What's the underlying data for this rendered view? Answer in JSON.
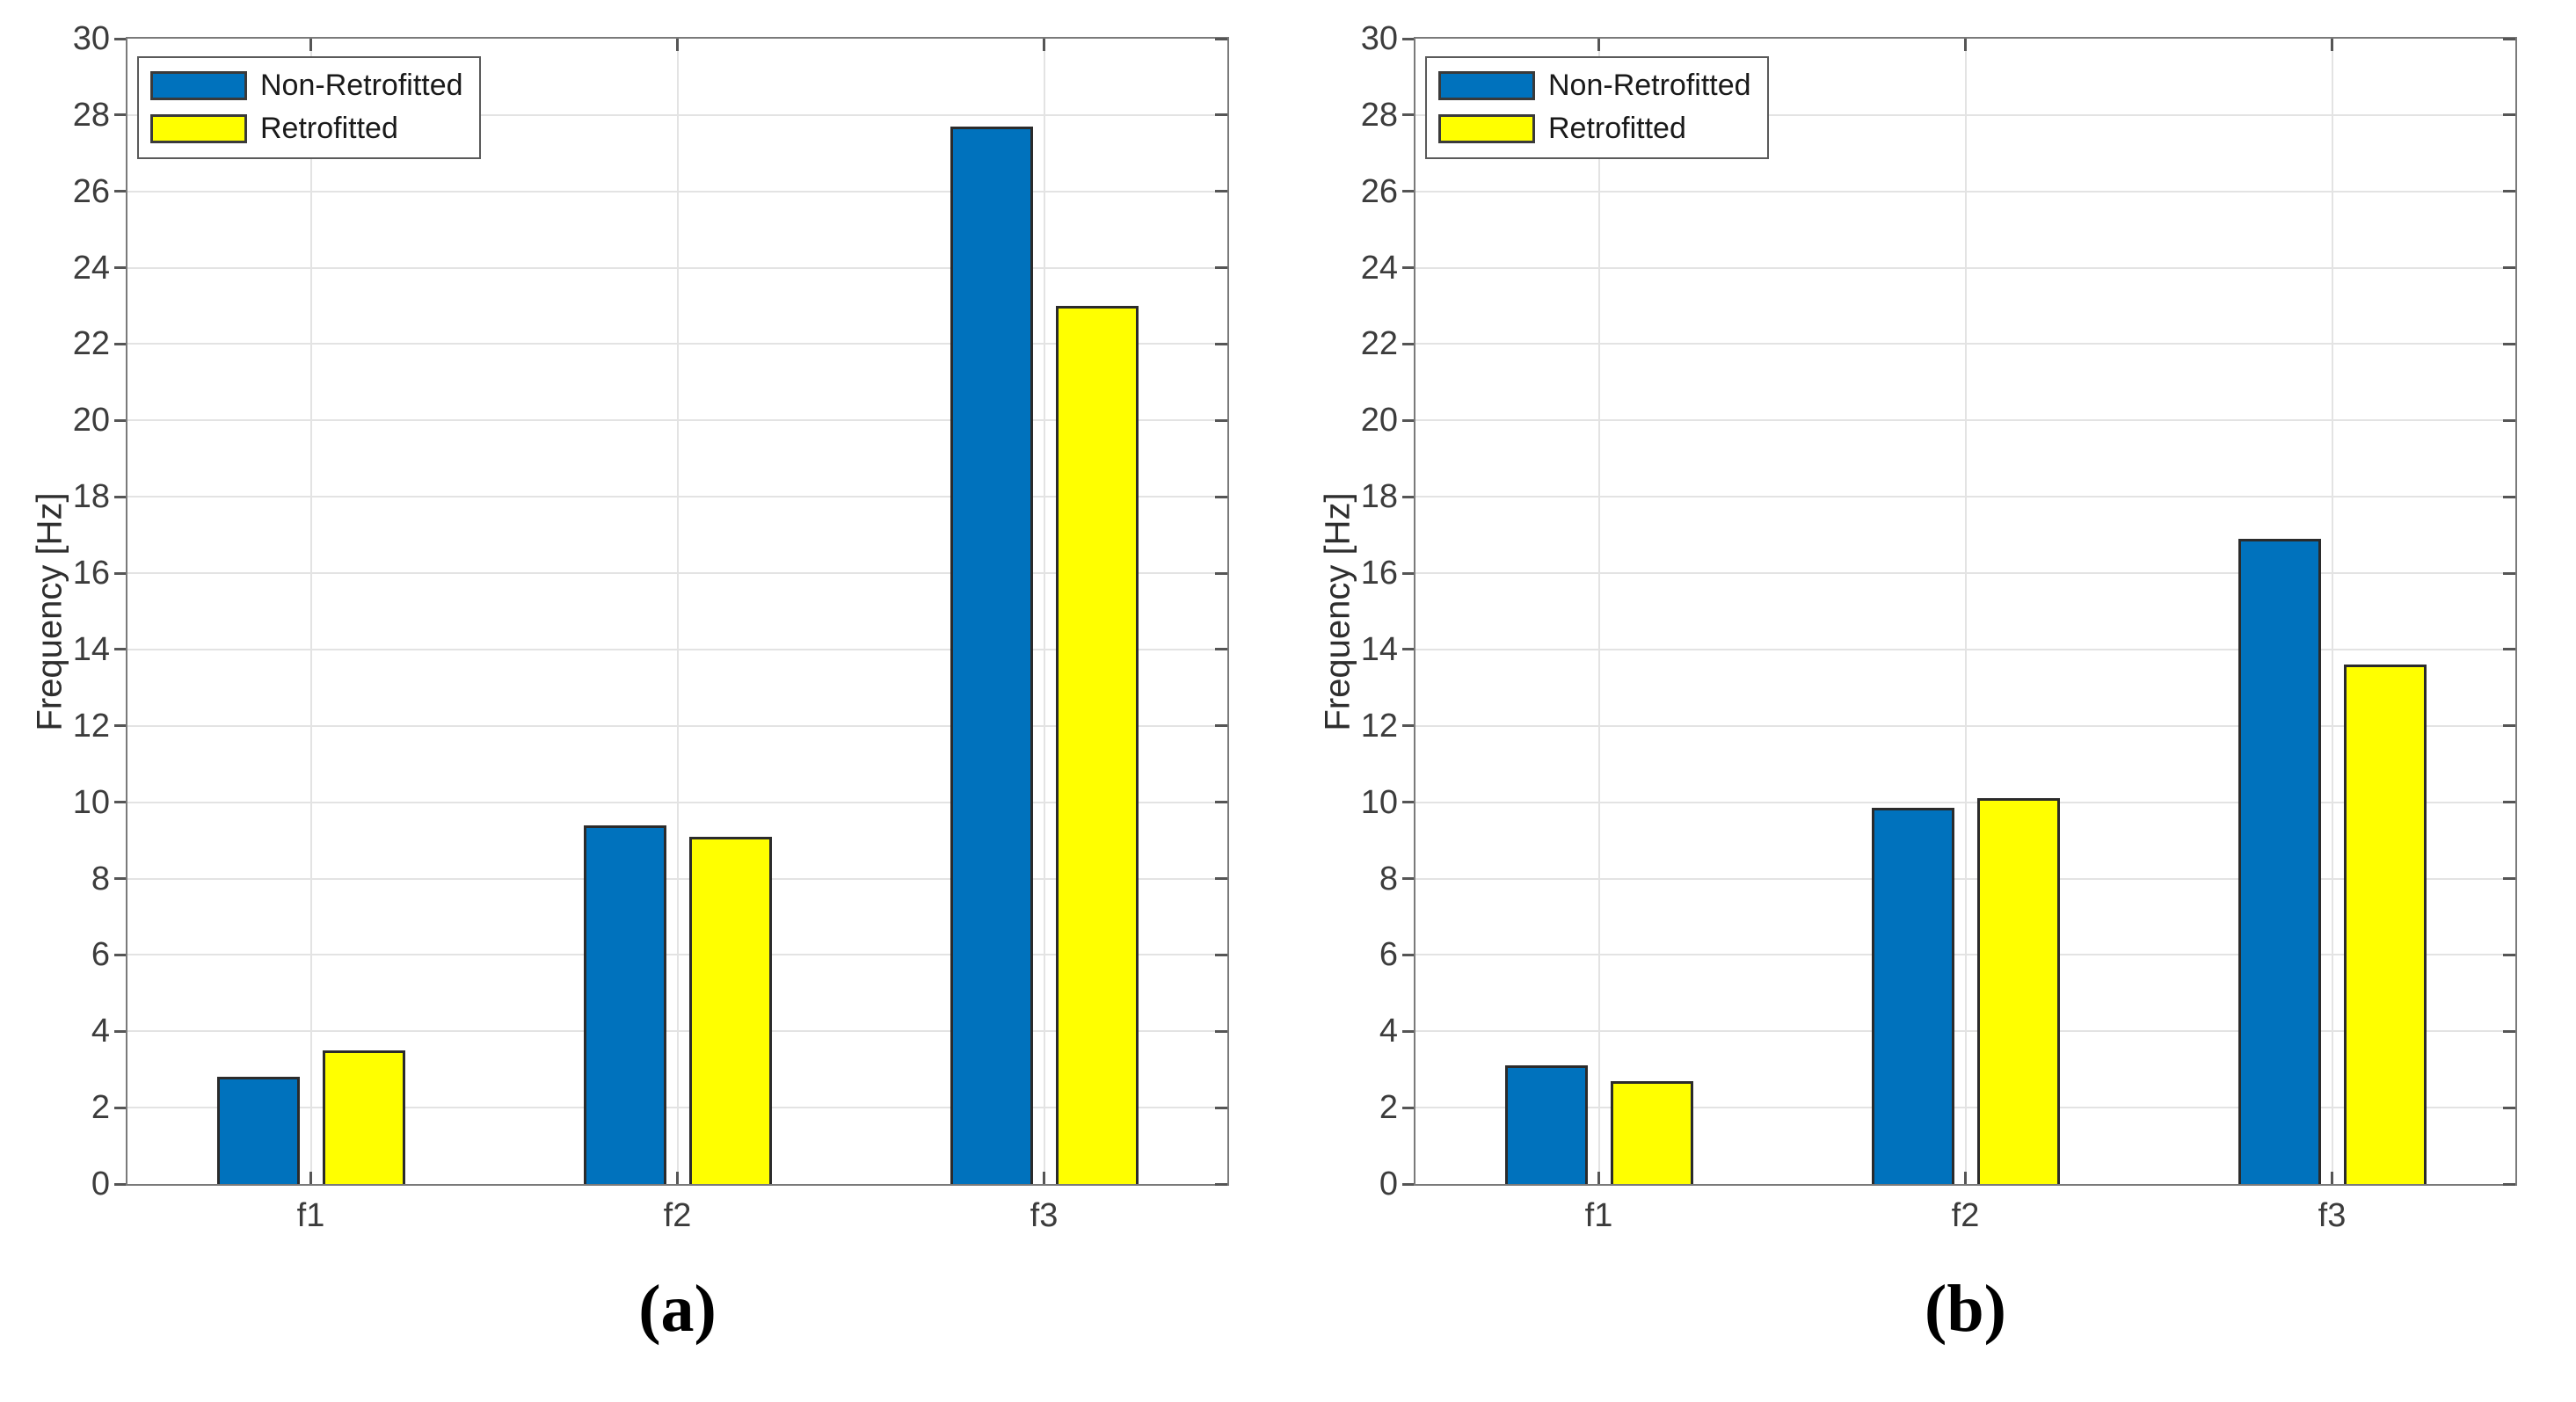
{
  "figure_type": "dual-panel grouped bar chart",
  "style": {
    "background": "#ffffff",
    "grid_color": "#e3e3e3",
    "axis_box_color": "#7a7a7a",
    "tick_color": "#555555",
    "tick_label_color": "#3c3c3c",
    "bar_edge_color": "#2b2b2b",
    "caption_color": "#000000",
    "legend_border_color": "#5a5a5a"
  },
  "chart_data": [
    {
      "type": "bar",
      "panel_label": "(a)",
      "title": "",
      "xlabel": "",
      "ylabel": "Frequency [Hz]",
      "ylim": [
        0,
        30
      ],
      "ytick_step": 2,
      "grid": true,
      "legend_position": "top-left",
      "categories": [
        "f1",
        "f2",
        "f3"
      ],
      "series": [
        {
          "name": "Non-Retrofitted",
          "color": "#0072BD",
          "values": [
            2.8,
            9.4,
            27.7
          ]
        },
        {
          "name": "Retrofitted",
          "color": "#FFFF00",
          "values": [
            3.5,
            9.1,
            23.0
          ]
        }
      ]
    },
    {
      "type": "bar",
      "panel_label": "(b)",
      "title": "",
      "xlabel": "",
      "ylabel": "Frequency [Hz]",
      "ylim": [
        0,
        30
      ],
      "ytick_step": 2,
      "grid": true,
      "legend_position": "top-left",
      "categories": [
        "f1",
        "f2",
        "f3"
      ],
      "series": [
        {
          "name": "Non-Retrofitted",
          "color": "#0072BD",
          "values": [
            3.1,
            9.85,
            16.9
          ]
        },
        {
          "name": "Retrofitted",
          "color": "#FFFF00",
          "values": [
            2.7,
            10.1,
            13.6
          ]
        }
      ]
    }
  ]
}
